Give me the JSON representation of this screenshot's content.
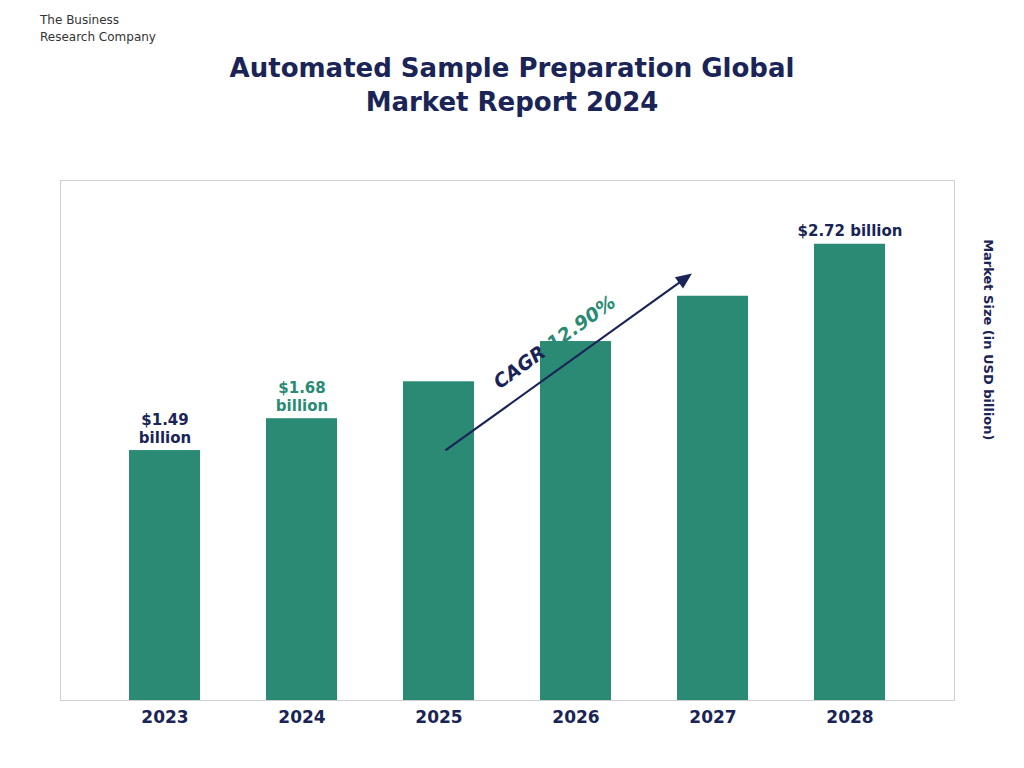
{
  "chart_data": {
    "type": "bar",
    "title": "Automated Sample Preparation Global\nMarket Report 2024",
    "categories": [
      "2023",
      "2024",
      "2025",
      "2026",
      "2027",
      "2028"
    ],
    "values": [
      1.49,
      1.68,
      1.9,
      2.14,
      2.41,
      2.72
    ],
    "color": "#2a8a74",
    "ylabel": "Market Size (in USD billion)",
    "ylim": [
      0,
      3.1
    ],
    "tick_labels": "x",
    "grid": false,
    "annotations": [
      {
        "text": "$1.49\nbillion",
        "category": "2023",
        "color": "#1a2456"
      },
      {
        "text": "$1.68\nbillion",
        "category": "2024",
        "color": "#2a8a74"
      },
      {
        "text": "$2.72 billion",
        "category": "2028",
        "color": "#1a2456"
      },
      {
        "text": "CAGR ",
        "color": "#1a2456"
      },
      {
        "text": "12.90%",
        "color": "#2a8a74"
      },
      {
        "text": "The Business\nResearch Company"
      }
    ]
  }
}
